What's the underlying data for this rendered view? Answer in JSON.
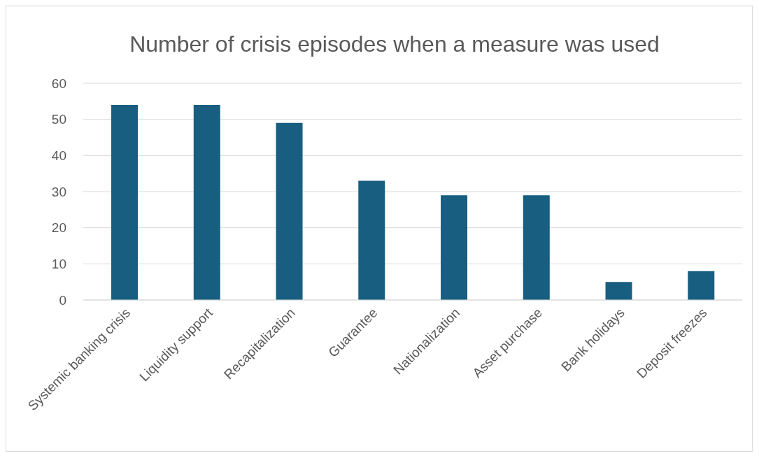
{
  "chart_data": {
    "type": "bar",
    "title": "Number of crisis episodes when a measure was used",
    "categories": [
      "Systemic banking crisis",
      "Liquidity support",
      "Recapitalization",
      "Guarantee",
      "Nationalization",
      "Asset purchase",
      "Bank holidays",
      "Deposit freezes"
    ],
    "values": [
      54,
      54,
      49,
      33,
      29,
      29,
      5,
      8
    ],
    "color": "#175e80",
    "ylim": [
      0,
      60
    ],
    "yticks": [
      0,
      10,
      20,
      30,
      40,
      50,
      60
    ],
    "grid": "y"
  }
}
